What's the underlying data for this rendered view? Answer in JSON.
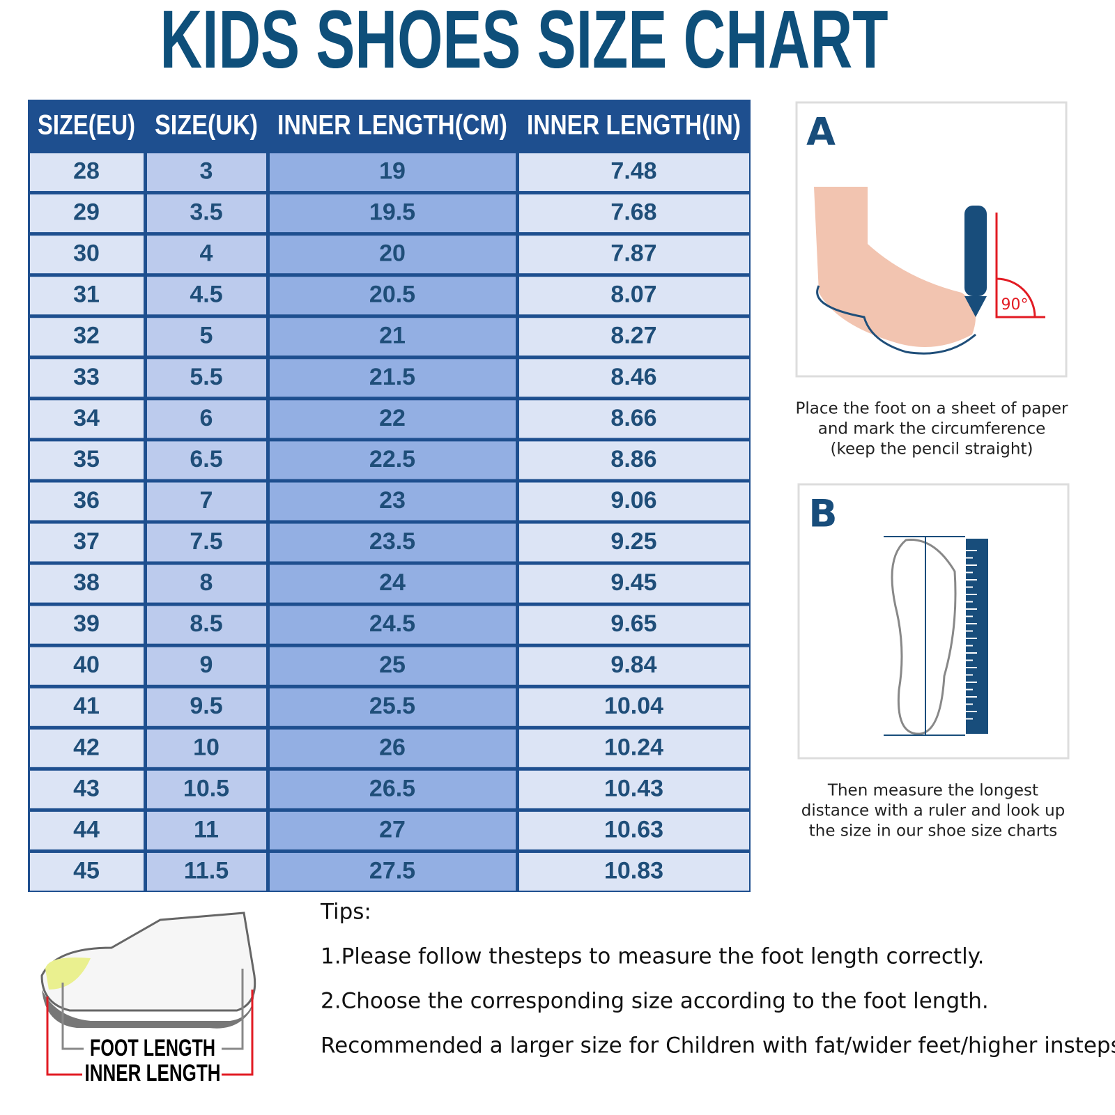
{
  "header": {
    "title": "KIDS SHOES SIZE CHART"
  },
  "table": {
    "columns": [
      "SIZE(EU)",
      "SIZE(UK)",
      "INNER LENGTH(CM)",
      "INNER LENGTH(IN)"
    ],
    "rows": [
      [
        "28",
        "3",
        "19",
        "7.48"
      ],
      [
        "29",
        "3.5",
        "19.5",
        "7.68"
      ],
      [
        "30",
        "4",
        "20",
        "7.87"
      ],
      [
        "31",
        "4.5",
        "20.5",
        "8.07"
      ],
      [
        "32",
        "5",
        "21",
        "8.27"
      ],
      [
        "33",
        "5.5",
        "21.5",
        "8.46"
      ],
      [
        "34",
        "6",
        "22",
        "8.66"
      ],
      [
        "35",
        "6.5",
        "22.5",
        "8.86"
      ],
      [
        "36",
        "7",
        "23",
        "9.06"
      ],
      [
        "37",
        "7.5",
        "23.5",
        "9.25"
      ],
      [
        "38",
        "8",
        "24",
        "9.45"
      ],
      [
        "39",
        "8.5",
        "24.5",
        "9.65"
      ],
      [
        "40",
        "9",
        "25",
        "9.84"
      ],
      [
        "41",
        "9.5",
        "25.5",
        "10.04"
      ],
      [
        "42",
        "10",
        "26",
        "10.24"
      ],
      [
        "43",
        "10.5",
        "26.5",
        "10.43"
      ],
      [
        "44",
        "11",
        "27",
        "10.63"
      ],
      [
        "45",
        "11.5",
        "27.5",
        "10.83"
      ]
    ]
  },
  "step_a": {
    "label": "A",
    "angle_label": "90°",
    "caption": [
      "Place the foot on a sheet of paper",
      "and mark the circumference",
      "(keep the pencil straight)"
    ]
  },
  "step_b": {
    "label": "B",
    "caption": [
      "Then measure the longest",
      "distance with a ruler and look up",
      "the size in our shoe size charts"
    ]
  },
  "tips": {
    "heading": "Tips:",
    "lines": [
      "1.Please follow thesteps to measure the foot length correctly.",
      "2.Choose the corresponding size according to the foot length.",
      "Recommended a larger size for Children with fat/wider feet/higher insteps"
    ]
  },
  "shoe_diagram": {
    "foot_label": "FOOT LENGTH",
    "inner_label": "INNER LENGTH"
  }
}
